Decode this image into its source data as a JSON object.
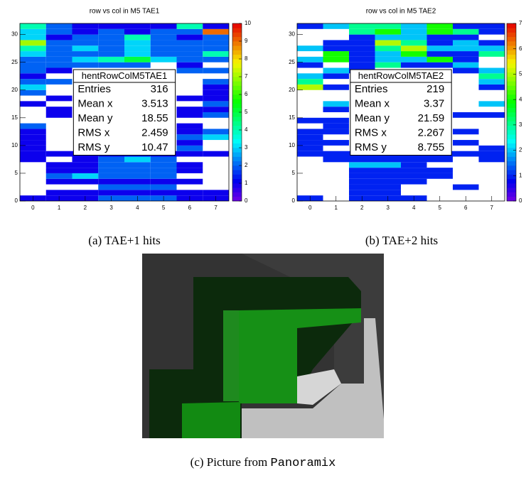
{
  "chart_data": [
    {
      "type": "heatmap",
      "title": "row vs col in M5 TAE1",
      "xlim": [
        -0.5,
        7.5
      ],
      "xticks": [
        0,
        1,
        2,
        3,
        4,
        5,
        6,
        7
      ],
      "ylim": [
        0,
        32
      ],
      "yticks": [
        0,
        5,
        10,
        15,
        20,
        25,
        30
      ],
      "zlim": [
        0,
        10
      ],
      "zticks": [
        0,
        1,
        2,
        3,
        4,
        5,
        6,
        7,
        8,
        9,
        10
      ],
      "z": [
        [
          1,
          1,
          1,
          2,
          2,
          2,
          1,
          1
        ],
        [
          null,
          1,
          1,
          1,
          1,
          1,
          1,
          1
        ],
        [
          null,
          null,
          null,
          2,
          2,
          2,
          null,
          null
        ],
        [
          null,
          1,
          1,
          1,
          1,
          1,
          1,
          null
        ],
        [
          null,
          2,
          3,
          2,
          2,
          2,
          null,
          null
        ],
        [
          null,
          1,
          1,
          2,
          2,
          2,
          1,
          null
        ],
        [
          null,
          1,
          1,
          2,
          2,
          2,
          1,
          null
        ],
        [
          1,
          null,
          1,
          2,
          3,
          2,
          null,
          null
        ],
        [
          1,
          1,
          1,
          1,
          1,
          1,
          1,
          1
        ],
        [
          1,
          null,
          null,
          null,
          null,
          null,
          2,
          null
        ],
        [
          1,
          null,
          null,
          null,
          null,
          null,
          1,
          null
        ],
        [
          1,
          null,
          null,
          null,
          null,
          null,
          2,
          3
        ],
        [
          1,
          null,
          null,
          null,
          null,
          null,
          1,
          2
        ],
        [
          2,
          null,
          null,
          null,
          null,
          null,
          1,
          null
        ],
        [
          null,
          null,
          null,
          null,
          null,
          null,
          null,
          null
        ],
        [
          null,
          1,
          null,
          null,
          null,
          null,
          1,
          2
        ],
        [
          null,
          1,
          null,
          null,
          null,
          null,
          1,
          1
        ],
        [
          1,
          null,
          null,
          null,
          null,
          null,
          null,
          2
        ],
        [
          null,
          1,
          null,
          null,
          null,
          null,
          1,
          1
        ],
        [
          2,
          null,
          null,
          null,
          null,
          null,
          null,
          1
        ],
        [
          3,
          null,
          null,
          null,
          null,
          null,
          null,
          1
        ],
        [
          2,
          2,
          null,
          null,
          null,
          null,
          null,
          2
        ],
        [
          1,
          null,
          null,
          null,
          null,
          null,
          null,
          null
        ],
        [
          2,
          1,
          null,
          null,
          null,
          null,
          2,
          2
        ],
        [
          2,
          2,
          2,
          2,
          2,
          null,
          1,
          null
        ],
        [
          2,
          2,
          3,
          4,
          5,
          3,
          2,
          2
        ],
        [
          3,
          2,
          2,
          2,
          3,
          2,
          2,
          4
        ],
        [
          4,
          2,
          3,
          2,
          3,
          2,
          2,
          2
        ],
        [
          7,
          2,
          2,
          2,
          3,
          2,
          2,
          2
        ],
        [
          3,
          1,
          2,
          2,
          4,
          2,
          1,
          2
        ],
        [
          3,
          2,
          1,
          2,
          1,
          2,
          2,
          9
        ],
        [
          4,
          2,
          1,
          1,
          1,
          1,
          4,
          1
        ]
      ],
      "stats_title": "hentRowColM5TAE1",
      "stats": [
        {
          "label": "Entries",
          "value": 316
        },
        {
          "label": "Mean x",
          "value": 3.513
        },
        {
          "label": "Mean y",
          "value": 18.55
        },
        {
          "label": "RMS x",
          "value": 2.459
        },
        {
          "label": "RMS y",
          "value": 10.47
        }
      ]
    },
    {
      "type": "heatmap",
      "title": "row vs col in M5 TAE2",
      "xlim": [
        -0.5,
        7.5
      ],
      "xticks": [
        0,
        1,
        2,
        3,
        4,
        5,
        6,
        7
      ],
      "ylim": [
        0,
        32
      ],
      "yticks": [
        0,
        5,
        10,
        15,
        20,
        25,
        30
      ],
      "zlim": [
        0,
        7
      ],
      "zticks": [
        0,
        1,
        2,
        3,
        4,
        5,
        6,
        7
      ],
      "z": [
        [
          1,
          null,
          1,
          1,
          1,
          null,
          null,
          null
        ],
        [
          null,
          null,
          1,
          1,
          null,
          null,
          null,
          null
        ],
        [
          null,
          null,
          1,
          1,
          null,
          null,
          1,
          null
        ],
        [
          null,
          null,
          1,
          1,
          1,
          null,
          null,
          null
        ],
        [
          null,
          null,
          1,
          1,
          1,
          1,
          null,
          null
        ],
        [
          null,
          null,
          1,
          1,
          1,
          1,
          null,
          null
        ],
        [
          null,
          null,
          2,
          2,
          1,
          null,
          null,
          null
        ],
        [
          null,
          1,
          1,
          1,
          1,
          1,
          null,
          1
        ],
        [
          1,
          1,
          1,
          1,
          1,
          1,
          1,
          1
        ],
        [
          1,
          null,
          null,
          null,
          null,
          null,
          null,
          1
        ],
        [
          1,
          1,
          null,
          null,
          null,
          null,
          1,
          null
        ],
        [
          1,
          null,
          null,
          null,
          null,
          null,
          null,
          null
        ],
        [
          1,
          1,
          null,
          null,
          null,
          null,
          1,
          null
        ],
        [
          null,
          1,
          null,
          null,
          null,
          null,
          null,
          null
        ],
        [
          1,
          1,
          null,
          null,
          null,
          null,
          null,
          null
        ],
        [
          null,
          null,
          null,
          null,
          null,
          null,
          1,
          1
        ],
        [
          null,
          1,
          null,
          null,
          null,
          null,
          null,
          null
        ],
        [
          null,
          2,
          null,
          null,
          null,
          null,
          null,
          2
        ],
        [
          null,
          null,
          null,
          null,
          null,
          null,
          null,
          null
        ],
        [
          null,
          null,
          null,
          null,
          null,
          null,
          null,
          null
        ],
        [
          5,
          1,
          null,
          null,
          null,
          null,
          null,
          1
        ],
        [
          3,
          null,
          null,
          null,
          null,
          null,
          null,
          2
        ],
        [
          2,
          1,
          null,
          null,
          null,
          null,
          null,
          3
        ],
        [
          null,
          2,
          1,
          null,
          null,
          null,
          1,
          2
        ],
        [
          1,
          null,
          1,
          3,
          1,
          1,
          2,
          null
        ],
        [
          2,
          4,
          1,
          2,
          2,
          4,
          1,
          null
        ],
        [
          null,
          4,
          1,
          2,
          4,
          1,
          1,
          3
        ],
        [
          2,
          1,
          1,
          3,
          5,
          2,
          2,
          2
        ],
        [
          null,
          1,
          1,
          5,
          3,
          1,
          2,
          1
        ],
        [
          null,
          null,
          1,
          2,
          2,
          1,
          1,
          null
        ],
        [
          null,
          null,
          3,
          4,
          2,
          4,
          3,
          1
        ],
        [
          1,
          2,
          3,
          3,
          2,
          4,
          1,
          1
        ]
      ],
      "stats_title": "hentRowColM5TAE2",
      "stats": [
        {
          "label": "Entries",
          "value": 219
        },
        {
          "label": "Mean x",
          "value": 3.37
        },
        {
          "label": "Mean y",
          "value": 21.59
        },
        {
          "label": "RMS x",
          "value": 2.267
        },
        {
          "label": "RMS y",
          "value": 8.755
        }
      ]
    }
  ],
  "captions": [
    "(a) TAE+1 hits",
    "(b) TAE+2 hits"
  ],
  "caption_c": {
    "text": "(c) Picture from",
    "code": "Panoramix"
  }
}
